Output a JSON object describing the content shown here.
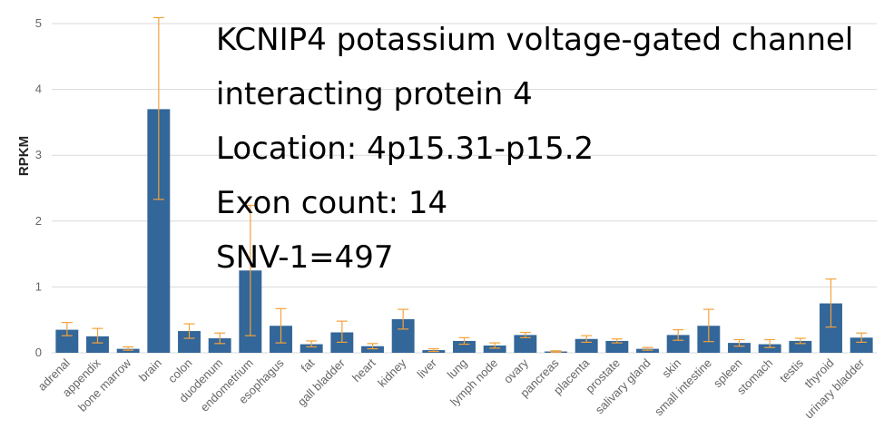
{
  "chart_data": {
    "type": "bar",
    "ylabel": "RPKM",
    "xlabel": "",
    "ylim": [
      0,
      5
    ],
    "yticks": [
      0,
      1,
      2,
      3,
      4,
      5
    ],
    "grid": true,
    "colors": {
      "bar": "#336699",
      "error": "#f4a23b",
      "grid": "#d9d9d9",
      "tick": "#666666"
    },
    "categories": [
      "adrenal",
      "appendix",
      "bone marrow",
      "brain",
      "colon",
      "duodenum",
      "endometrium",
      "esophagus",
      "fat",
      "gall bladder",
      "heart",
      "kidney",
      "liver",
      "lung",
      "lymph node",
      "ovary",
      "pancreas",
      "placenta",
      "prostate",
      "salivary gland",
      "skin",
      "small intestine",
      "spleen",
      "stomach",
      "testis",
      "thyroid",
      "urinary bladder"
    ],
    "values": [
      0.35,
      0.25,
      0.06,
      3.7,
      0.33,
      0.22,
      1.25,
      0.41,
      0.13,
      0.31,
      0.1,
      0.51,
      0.04,
      0.18,
      0.11,
      0.27,
      0.02,
      0.21,
      0.18,
      0.06,
      0.27,
      0.41,
      0.15,
      0.13,
      0.18,
      0.75,
      0.23
    ],
    "error_low": [
      0.26,
      0.15,
      0.04,
      2.33,
      0.22,
      0.14,
      0.26,
      0.15,
      0.09,
      0.16,
      0.06,
      0.36,
      0.02,
      0.13,
      0.07,
      0.23,
      0.01,
      0.16,
      0.15,
      0.04,
      0.19,
      0.17,
      0.1,
      0.08,
      0.14,
      0.39,
      0.16
    ],
    "error_high": [
      0.46,
      0.37,
      0.09,
      5.09,
      0.44,
      0.3,
      2.24,
      0.67,
      0.18,
      0.48,
      0.14,
      0.66,
      0.06,
      0.23,
      0.15,
      0.31,
      0.03,
      0.26,
      0.21,
      0.08,
      0.35,
      0.66,
      0.2,
      0.2,
      0.22,
      1.12,
      0.3
    ]
  },
  "annotation": {
    "line1": "KCNIP4 potassium voltage-gated channel",
    "line2": "interacting protein 4",
    "line3": "Location: 4p15.31-p15.2",
    "line4": "Exon count: 14",
    "line5": "SNV-1=497"
  }
}
